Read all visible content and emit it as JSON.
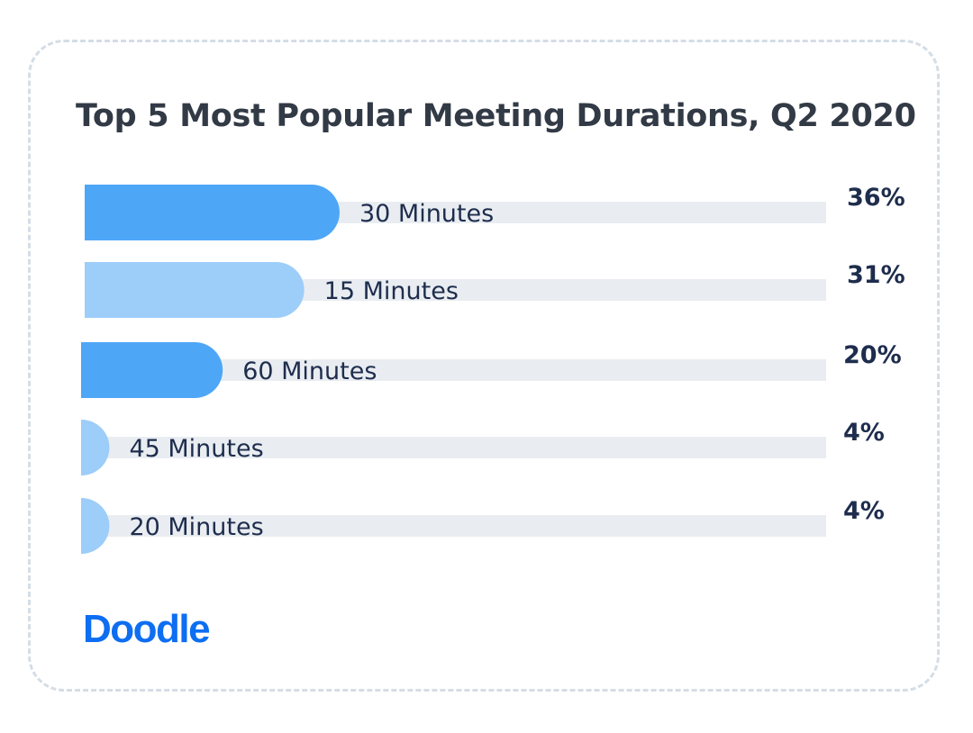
{
  "brand": {
    "logo_text": "Doodle",
    "color": "#0d6ef2"
  },
  "colors": {
    "bar_dark": "#4ea6f7",
    "bar_light": "#9dcdf9",
    "track": "#e9edf1",
    "text": "#1e2d4d",
    "card_border": "#d5dde5"
  },
  "chart_data": {
    "type": "bar",
    "orientation": "horizontal",
    "title": "Top 5 Most Popular Meeting Durations, Q2 2020",
    "categories": [
      "30 Minutes",
      "15 Minutes",
      "60 Minutes",
      "45 Minutes",
      "20 Minutes"
    ],
    "values": [
      36,
      31,
      20,
      4,
      4
    ],
    "value_labels": [
      "36%",
      "31%",
      "20%",
      "4%",
      "4%"
    ],
    "unit": "%",
    "bar_colors": [
      "#4ea6f7",
      "#9dcdf9",
      "#4ea6f7",
      "#9dcdf9",
      "#9dcdf9"
    ],
    "xlim": [
      0,
      100
    ],
    "grid": false,
    "legend": "none"
  }
}
